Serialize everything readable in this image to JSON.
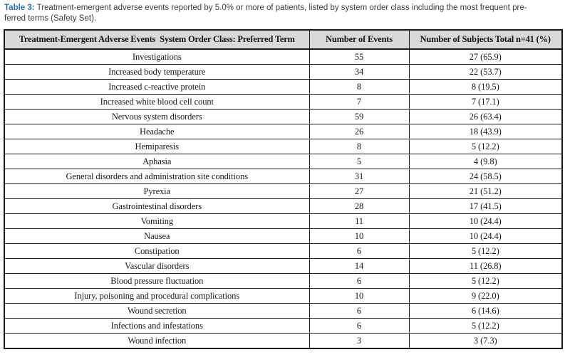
{
  "caption": {
    "label": "Table 3:",
    "line1": " Treatment-emergent adverse events reported by 5.0% or more of patients, listed by system order class including the most frequent pre-",
    "line2": "ferred terms (Safety Set)."
  },
  "table": {
    "columns": [
      "Treatment-Emergent Adverse Events  System Order Class: Preferred Term",
      "Number of Events",
      "Number of Subjects Total n=41 (%)"
    ],
    "rows": [
      [
        "Investigations",
        "55",
        "27 (65.9)"
      ],
      [
        "Increased body temperature",
        "34",
        "22 (53.7)"
      ],
      [
        "Increased c-reactive protein",
        "8",
        "8 (19.5)"
      ],
      [
        "Increased white blood cell count",
        "7",
        "7 (17.1)"
      ],
      [
        "Nervous system disorders",
        "59",
        "26 (63.4)"
      ],
      [
        "Headache",
        "26",
        "18 (43.9)"
      ],
      [
        "Hemiparesis",
        "8",
        "5 (12.2)"
      ],
      [
        "Aphasia",
        "5",
        "4 (9.8)"
      ],
      [
        "General disorders and administration site conditions",
        "31",
        "24 (58.5)"
      ],
      [
        "Pyrexia",
        "27",
        "21 (51.2)"
      ],
      [
        "Gastrointestinal disorders",
        "28",
        "17 (41.5)"
      ],
      [
        "Vomiting",
        "11",
        "10 (24.4)"
      ],
      [
        "Nausea",
        "10",
        "10 (24.4)"
      ],
      [
        "Constipation",
        "6",
        "5 (12.2)"
      ],
      [
        "Vascular disorders",
        "14",
        "11 (26.8)"
      ],
      [
        "Blood pressure fluctuation",
        "6",
        "5 (12.2)"
      ],
      [
        "Injury, poisoning and procedural complications",
        "10",
        "9 (22.0)"
      ],
      [
        "Wound secretion",
        "6",
        "6 (14.6)"
      ],
      [
        "Infections and infestations",
        "6",
        "5 (12.2)"
      ],
      [
        "Wound infection",
        "3",
        "3 (7.3)"
      ]
    ]
  },
  "colors": {
    "caption_label_blue": "#2b6cb5",
    "header_background": "#d9d9d9",
    "table_border": "#1a1a1a",
    "body_text": "#3d3d3d"
  }
}
